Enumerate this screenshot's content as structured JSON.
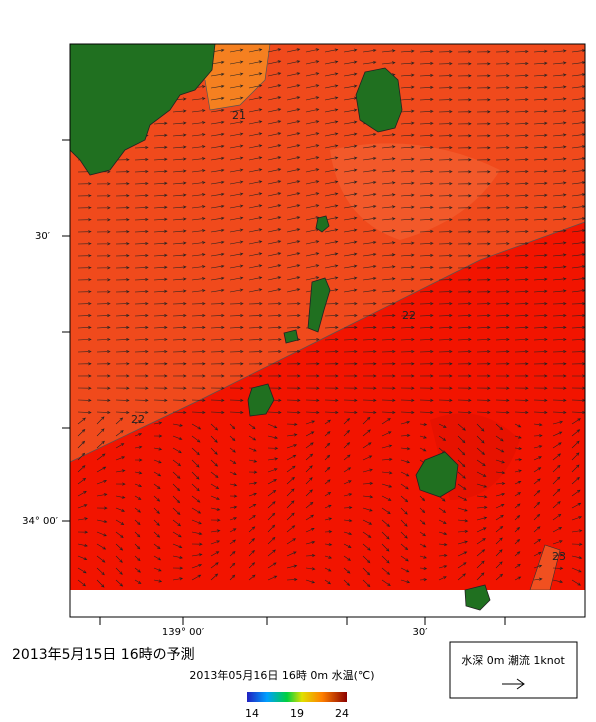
{
  "map": {
    "axes": {
      "lat_labels": [
        "30′",
        "34° 00′"
      ],
      "lon_labels": [
        "139° 00′",
        "30′"
      ]
    },
    "contour_labels": [
      "21",
      "22",
      "22",
      "23"
    ],
    "title": "2013年5月15日 16時の予測",
    "subtitle": "2013年05月16日 16時 0m 水温(℃)",
    "colorbar": {
      "ticks": [
        14,
        19,
        24
      ]
    },
    "legend": {
      "text": "水深 0m 潮流 1knot"
    }
  }
}
